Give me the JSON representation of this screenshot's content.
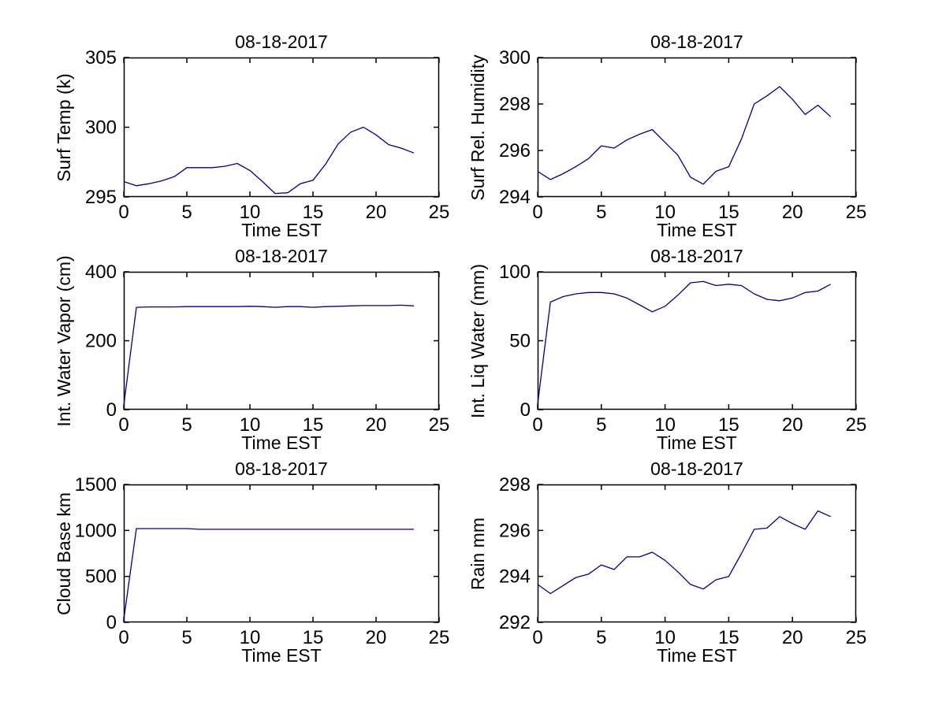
{
  "figure": {
    "background": "#ffffff",
    "axis_color": "#000000",
    "line_color": "#00008B"
  },
  "chart_data": [
    {
      "type": "line",
      "title": "08-18-2017",
      "xlabel": "Time EST",
      "ylabel": "Surf Temp (k)",
      "xlim": [
        0,
        25
      ],
      "ylim": [
        295,
        305
      ],
      "xticks": [
        0,
        5,
        10,
        15,
        20,
        25
      ],
      "yticks": [
        295,
        300,
        305
      ],
      "grid": false,
      "legend": null,
      "x": [
        0,
        1,
        2,
        3,
        4,
        5,
        6,
        7,
        8,
        9,
        10,
        11,
        12,
        13,
        14,
        15,
        16,
        17,
        18,
        19,
        20,
        21,
        22,
        23
      ],
      "y": [
        296.1,
        295.8,
        295.95,
        296.15,
        296.45,
        297.1,
        297.1,
        297.1,
        297.2,
        297.4,
        296.9,
        296.1,
        295.25,
        295.3,
        295.95,
        296.2,
        297.35,
        298.8,
        299.65,
        300.0,
        299.45,
        298.75,
        298.5,
        298.15
      ]
    },
    {
      "type": "line",
      "title": "08-18-2017",
      "xlabel": "Time EST",
      "ylabel": "Surf Rel. Humidity",
      "xlim": [
        0,
        25
      ],
      "ylim": [
        294,
        300
      ],
      "xticks": [
        0,
        5,
        10,
        15,
        20,
        25
      ],
      "yticks": [
        294,
        296,
        298,
        300
      ],
      "grid": false,
      "legend": null,
      "x": [
        0,
        1,
        2,
        3,
        4,
        5,
        6,
        7,
        8,
        9,
        10,
        11,
        12,
        13,
        14,
        15,
        16,
        17,
        18,
        19,
        20,
        21,
        22,
        23
      ],
      "y": [
        295.1,
        294.75,
        295.0,
        295.3,
        295.65,
        296.2,
        296.1,
        296.45,
        296.7,
        296.9,
        296.35,
        295.8,
        294.85,
        294.55,
        295.1,
        295.3,
        296.5,
        298.0,
        298.35,
        298.75,
        298.2,
        297.55,
        297.95,
        297.45
      ]
    },
    {
      "type": "line",
      "title": "08-18-2017",
      "xlabel": "Time EST",
      "ylabel": "Int. Water Vapor (cm)",
      "xlim": [
        0,
        25
      ],
      "ylim": [
        0,
        400
      ],
      "xticks": [
        0,
        5,
        10,
        15,
        20,
        25
      ],
      "yticks": [
        0,
        200,
        400
      ],
      "grid": false,
      "legend": null,
      "x": [
        0,
        1,
        2,
        3,
        4,
        5,
        6,
        7,
        8,
        9,
        10,
        11,
        12,
        13,
        14,
        15,
        16,
        17,
        18,
        19,
        20,
        21,
        22,
        23
      ],
      "y": [
        12,
        297,
        298,
        298,
        298,
        299,
        299,
        299,
        299,
        299,
        300,
        299,
        297,
        299,
        299,
        297,
        299,
        300,
        301,
        302,
        302,
        302,
        303,
        301
      ]
    },
    {
      "type": "line",
      "title": "08-18-2017",
      "xlabel": "Time EST",
      "ylabel": "Int. Liq Water (mm)",
      "xlim": [
        0,
        25
      ],
      "ylim": [
        0,
        100
      ],
      "xticks": [
        0,
        5,
        10,
        15,
        20,
        25
      ],
      "yticks": [
        0,
        50,
        100
      ],
      "grid": false,
      "legend": null,
      "x": [
        0,
        1,
        2,
        3,
        4,
        5,
        6,
        7,
        8,
        9,
        10,
        11,
        12,
        13,
        14,
        15,
        16,
        17,
        18,
        19,
        20,
        21,
        22,
        23
      ],
      "y": [
        4,
        78,
        82,
        84,
        85,
        85,
        84,
        81,
        76,
        71,
        75,
        83,
        92,
        93,
        90,
        91,
        90,
        84,
        80,
        79,
        81,
        85,
        86,
        91
      ]
    },
    {
      "type": "line",
      "title": "08-18-2017",
      "xlabel": "Time EST",
      "ylabel": "Cloud Base km",
      "xlim": [
        0,
        25
      ],
      "ylim": [
        0,
        1500
      ],
      "xticks": [
        0,
        5,
        10,
        15,
        20,
        25
      ],
      "yticks": [
        0,
        500,
        1000,
        1500
      ],
      "grid": false,
      "legend": null,
      "x": [
        0,
        1,
        2,
        3,
        4,
        5,
        6,
        7,
        8,
        9,
        10,
        11,
        12,
        13,
        14,
        15,
        16,
        17,
        18,
        19,
        20,
        21,
        22,
        23
      ],
      "y": [
        30,
        1020,
        1020,
        1020,
        1020,
        1020,
        1012,
        1012,
        1012,
        1012,
        1012,
        1012,
        1012,
        1012,
        1012,
        1012,
        1012,
        1012,
        1012,
        1012,
        1012,
        1012,
        1012,
        1012
      ]
    },
    {
      "type": "line",
      "title": "08-18-2017",
      "xlabel": "Time EST",
      "ylabel": "Rain mm",
      "xlim": [
        0,
        25
      ],
      "ylim": [
        292,
        298
      ],
      "xticks": [
        0,
        5,
        10,
        15,
        20,
        25
      ],
      "yticks": [
        292,
        294,
        296,
        298
      ],
      "grid": false,
      "legend": null,
      "x": [
        0,
        1,
        2,
        3,
        4,
        5,
        6,
        7,
        8,
        9,
        10,
        11,
        12,
        13,
        14,
        15,
        16,
        17,
        18,
        19,
        20,
        21,
        22,
        23
      ],
      "y": [
        293.65,
        293.25,
        293.6,
        293.95,
        294.1,
        294.5,
        294.3,
        294.85,
        294.85,
        295.05,
        294.7,
        294.2,
        293.65,
        293.45,
        293.85,
        294.0,
        295.0,
        296.05,
        296.1,
        296.6,
        296.3,
        296.05,
        296.85,
        296.6
      ]
    }
  ]
}
